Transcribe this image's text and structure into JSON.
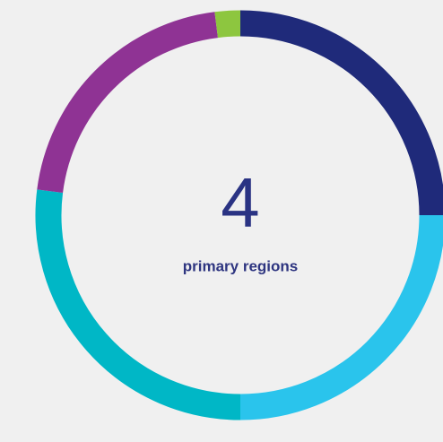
{
  "chart_data": {
    "type": "donut",
    "center_value": "4",
    "center_label": "primary regions",
    "categories": [
      null,
      null,
      null,
      null,
      null
    ],
    "values": [
      25,
      25,
      27,
      21,
      2
    ],
    "colors": [
      "#1f2a7a",
      "#2ac4ec",
      "#00b7c6",
      "#8f3394",
      "#8dc63f"
    ]
  }
}
